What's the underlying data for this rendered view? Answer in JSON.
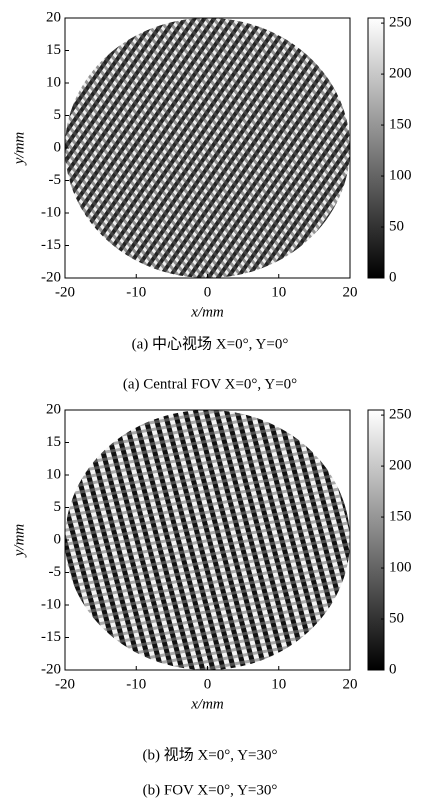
{
  "chart_data": [
    {
      "type": "heatmap",
      "xlabel": "x/mm",
      "ylabel": "y/mm",
      "xlim": [
        -20,
        20
      ],
      "ylim": [
        -20,
        20
      ],
      "xticks": [
        -20,
        -10,
        0,
        10,
        20
      ],
      "yticks": [
        -20,
        -15,
        -10,
        -5,
        0,
        5,
        10,
        15,
        20
      ],
      "clim": [
        0,
        255
      ],
      "cticks": [
        0,
        50,
        100,
        150,
        200,
        250
      ],
      "captions": [
        "(a) 中心视场 X=0°, Y=0°",
        "(a) Central FOV X=0°, Y=0°"
      ]
    },
    {
      "type": "heatmap",
      "xlabel": "x/mm",
      "ylabel": "y/mm",
      "xlim": [
        -20,
        20
      ],
      "ylim": [
        -20,
        20
      ],
      "xticks": [
        -20,
        -10,
        0,
        10,
        20
      ],
      "yticks": [
        -20,
        -15,
        -10,
        -5,
        0,
        5,
        10,
        15,
        20
      ],
      "clim": [
        0,
        255
      ],
      "cticks": [
        0,
        50,
        100,
        150,
        200,
        250
      ],
      "captions": [
        "(b) 视场 X=0°, Y=30°",
        "(b) FOV X=0°, Y=30°"
      ]
    }
  ]
}
